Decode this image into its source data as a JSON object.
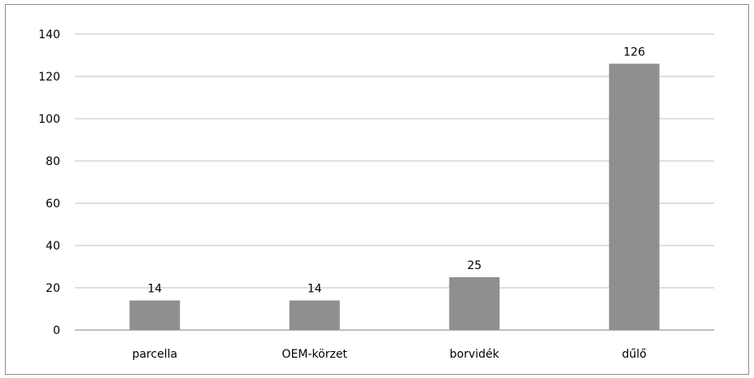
{
  "chart_data": {
    "type": "bar",
    "categories": [
      "parcella",
      "OEM-körzet",
      "borvidék",
      "dűlő"
    ],
    "values": [
      14,
      14,
      25,
      126
    ],
    "data_labels": [
      "14",
      "14",
      "25",
      "126"
    ],
    "title": "",
    "xlabel": "",
    "ylabel": "",
    "ylim": [
      0,
      140
    ],
    "yticks": [
      "0",
      "20",
      "40",
      "60",
      "80",
      "100",
      "120",
      "140"
    ],
    "grid": true,
    "legend": "none",
    "bar_color": "#8f8f8f",
    "grid_color": "#bfbfbf",
    "axis_color": "#808080"
  }
}
